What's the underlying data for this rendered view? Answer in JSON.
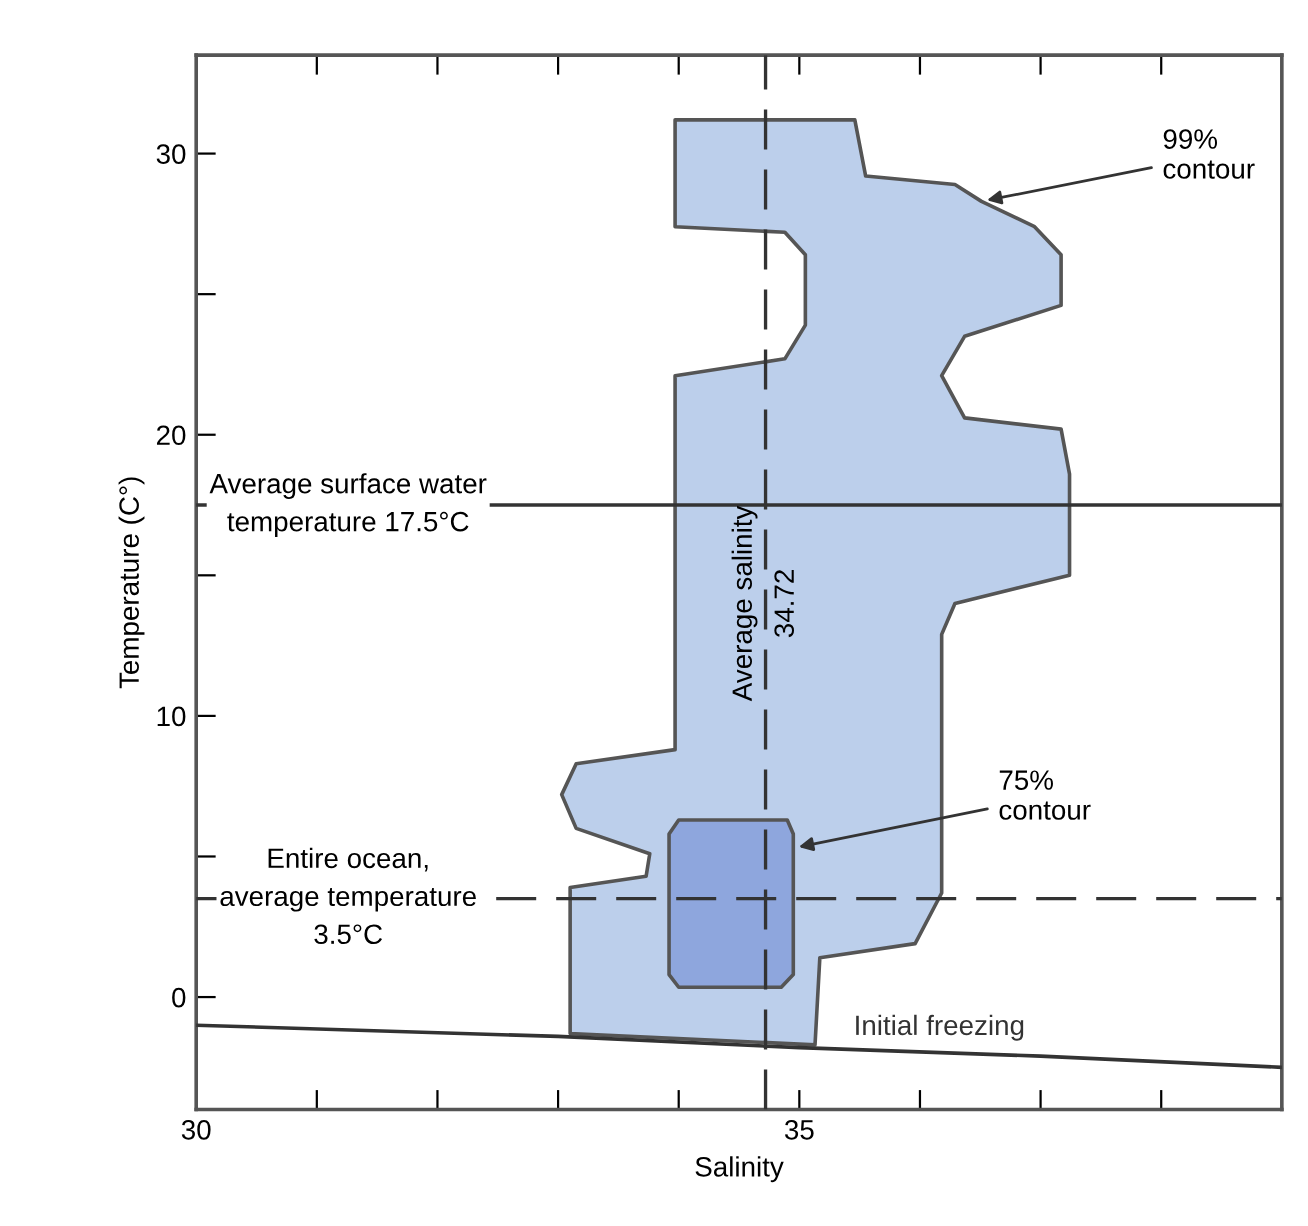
{
  "chart_data": {
    "type": "area",
    "xlabel": "Salinity",
    "ylabel": "Temperature (C°)",
    "xlim": [
      30,
      39
    ],
    "ylim": [
      -4,
      33.5
    ],
    "xticks": [
      30,
      {
        "value": 31,
        "label": null
      },
      {
        "value": 32,
        "label": null
      },
      {
        "value": 33,
        "label": null
      },
      {
        "value": 34,
        "label": null
      },
      35,
      {
        "value": 36,
        "label": null
      },
      {
        "value": 37,
        "label": null
      },
      {
        "value": 38,
        "label": null
      }
    ],
    "yticks": [
      0,
      {
        "value": 5,
        "label": null
      },
      10,
      {
        "value": 15,
        "label": null
      },
      20,
      {
        "value": 25,
        "label": null
      },
      30
    ],
    "grid": false,
    "legend": false,
    "series": [
      {
        "color": "#bccfeb",
        "x": [
          33.97,
          35.46,
          35.55,
          36.29,
          36.51,
          36.95,
          37.17,
          37.17,
          36.37,
          36.18,
          36.37,
          37.17,
          37.24,
          37.24,
          36.29,
          36.18,
          36.18,
          35.96,
          35.17,
          35.13,
          33.1,
          33.1,
          33.73,
          33.76,
          33.15,
          33.03,
          33.15,
          33.97,
          33.97,
          34.88,
          35.05,
          35.05,
          34.88,
          33.97
        ],
        "values": [
          31.2,
          31.2,
          29.2,
          28.9,
          28.3,
          27.4,
          26.4,
          24.6,
          23.5,
          22.1,
          20.6,
          20.2,
          18.6,
          15.0,
          14.0,
          12.9,
          3.7,
          1.9,
          1.4,
          -1.7,
          -1.3,
          3.9,
          4.3,
          5.1,
          6.0,
          7.2,
          8.3,
          8.8,
          22.1,
          22.7,
          23.9,
          26.4,
          27.2,
          27.4
        ]
      },
      {
        "color": "#8ea6dd",
        "x": [
          34.0,
          34.9,
          34.95,
          34.95,
          34.85,
          34.0,
          33.92,
          33.92
        ],
        "values": [
          6.3,
          6.3,
          5.8,
          0.8,
          0.35,
          0.35,
          0.8,
          5.8
        ]
      },
      {
        "type": "line",
        "name": "Initial freezing",
        "color": "#333333",
        "line_style": "solid",
        "x": [
          30,
          33,
          35,
          37,
          39
        ],
        "values": [
          -1.0,
          -1.4,
          -1.8,
          -2.1,
          -2.5
        ]
      }
    ],
    "ref_lines": [
      {
        "axis": "y",
        "value": 17.5,
        "label": "Average surface water\ntemperature 17.5°C",
        "color": "#333333",
        "line_style": "solid"
      },
      {
        "axis": "y",
        "value": 3.5,
        "label": "Entire ocean,\naverage temperature\n3.5°C",
        "color": "#333333",
        "line_style": "dashed"
      },
      {
        "axis": "x",
        "value": 34.72,
        "label": "Average salinity\n34.72",
        "color": "#333333",
        "line_style": "dashed"
      }
    ],
    "annotations": [
      {
        "text": "99%\ncontour",
        "x": 36.51,
        "y": 28.3
      },
      {
        "text": "75%\ncontour",
        "x": 34.95,
        "y": 5.3
      }
    ]
  }
}
